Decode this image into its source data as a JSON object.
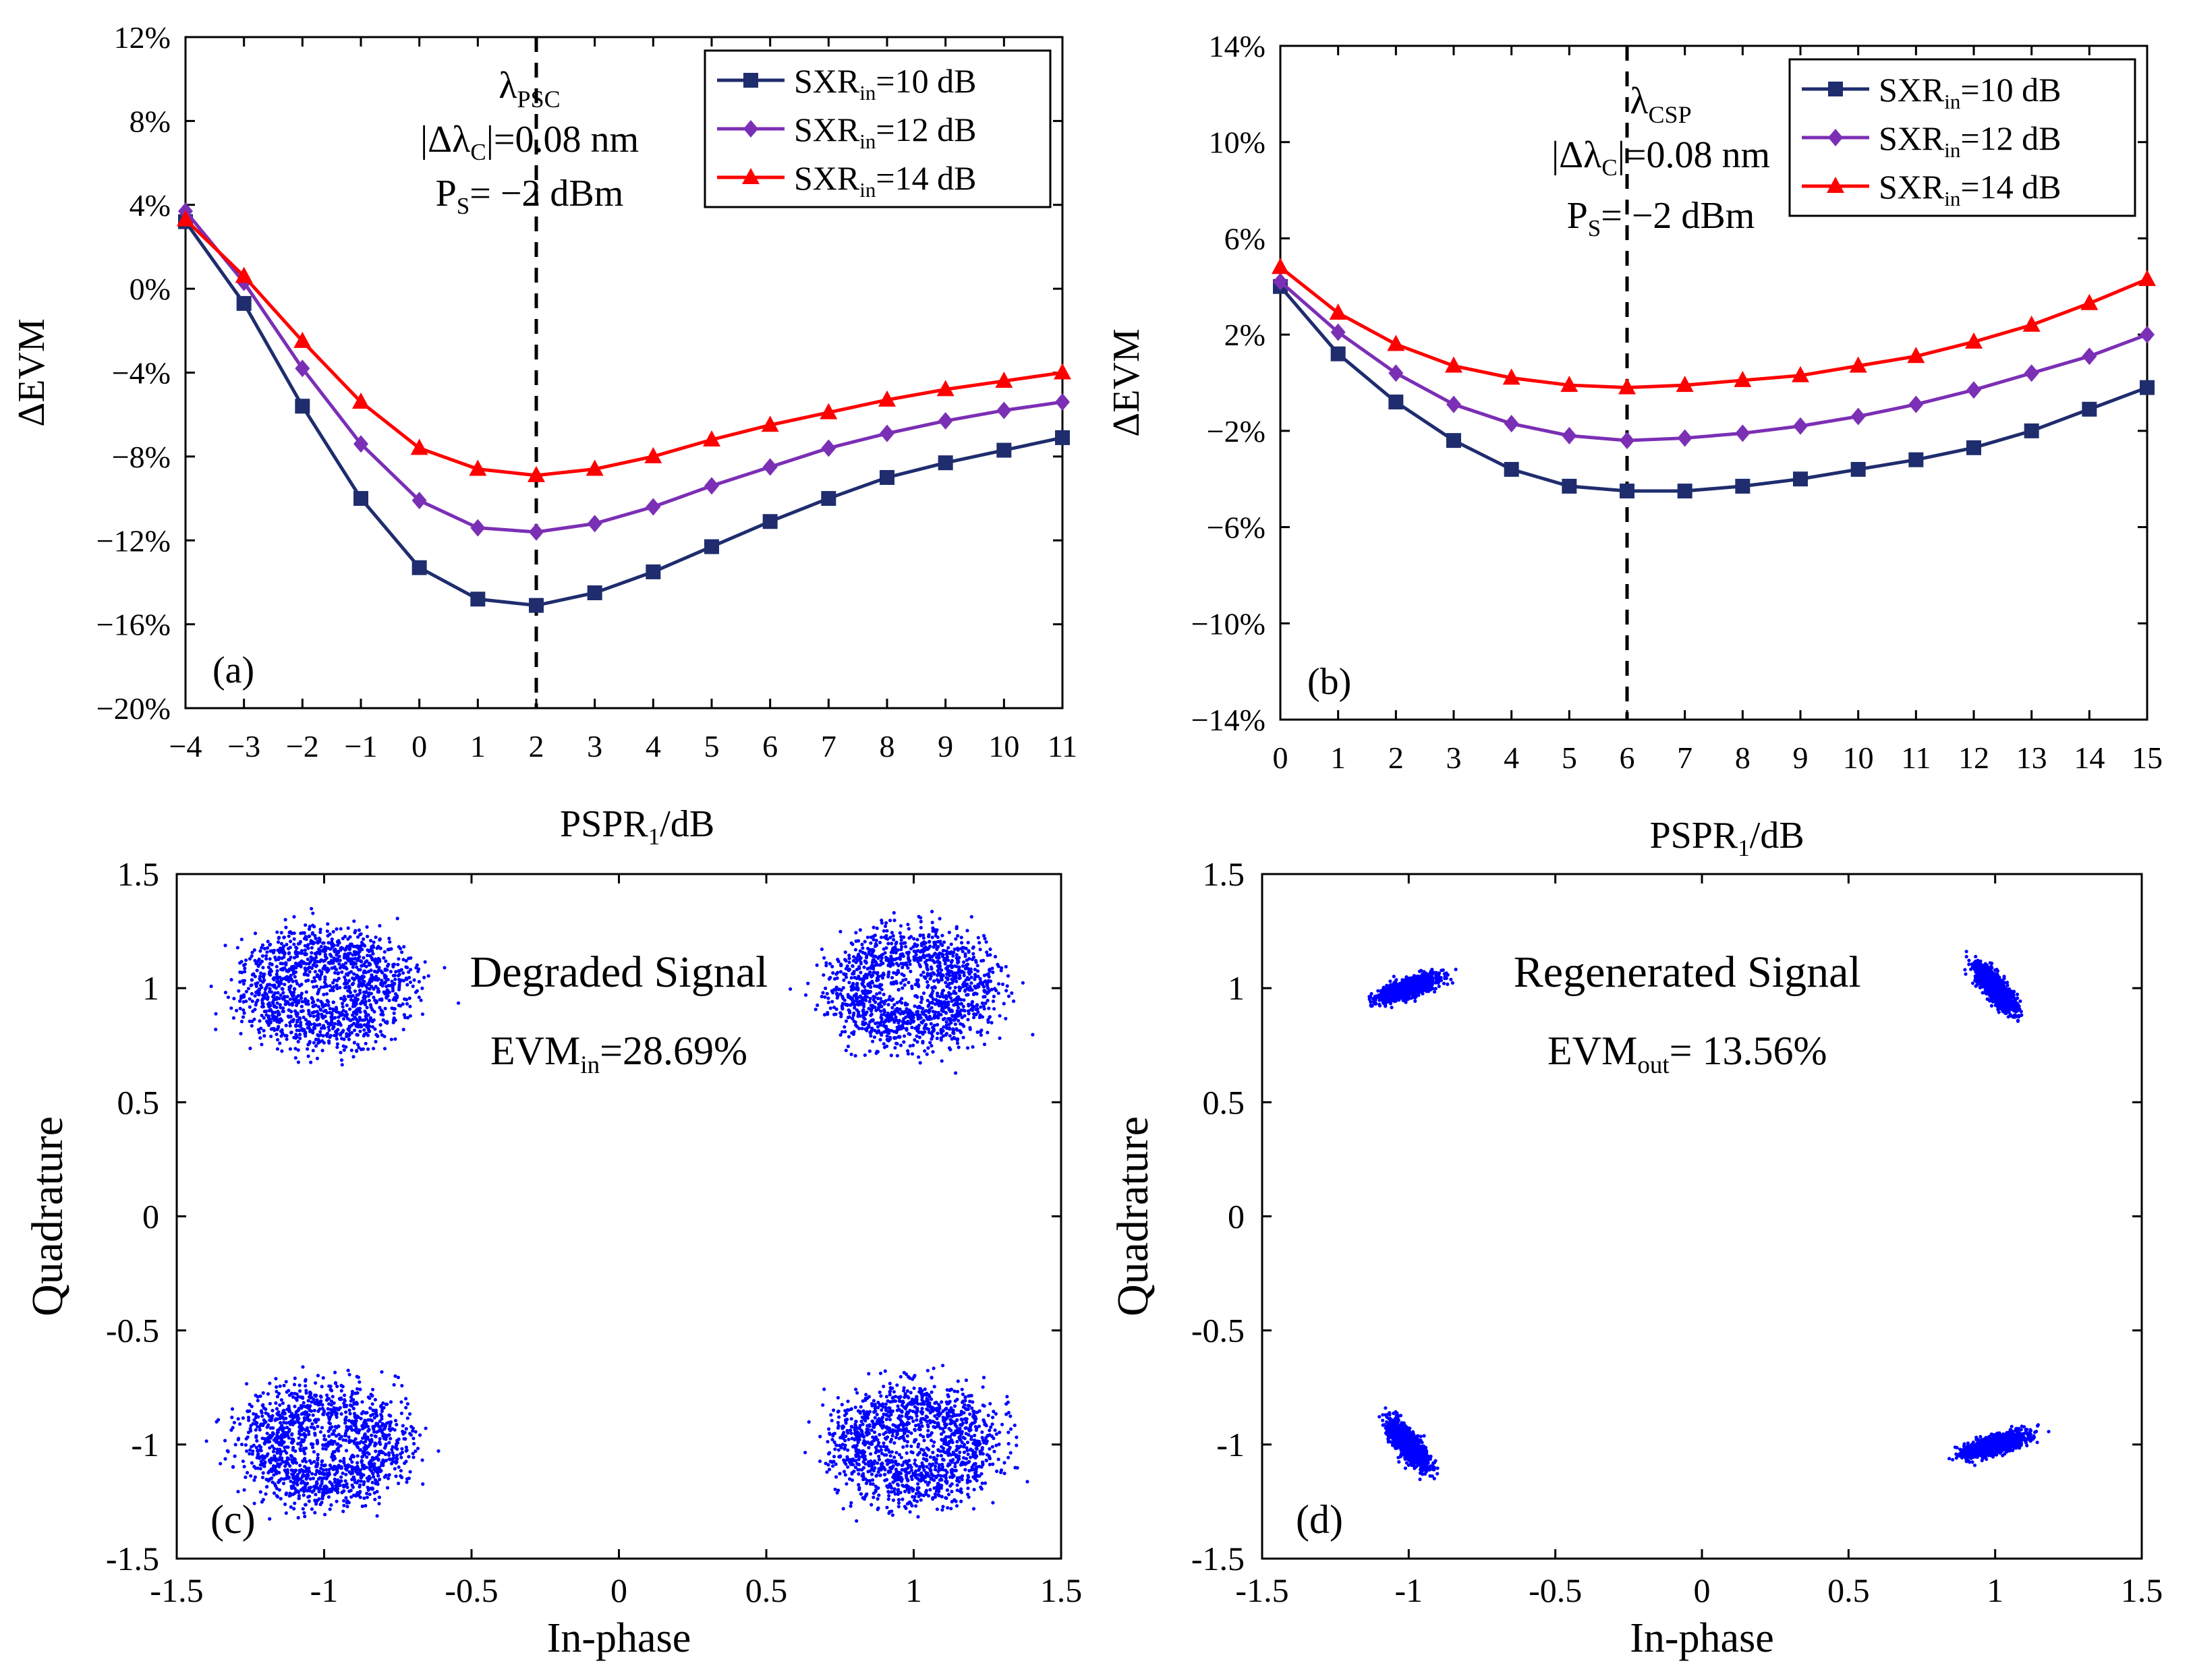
{
  "colors": {
    "series1": "#1f2d6e",
    "series2": "#7b2fb5",
    "series3": "#ff0000",
    "scatter": "#0000ff",
    "axis": "#000000"
  },
  "chart_data": [
    {
      "id": "a",
      "type": "line",
      "panel_label": "(a)",
      "xlabel": {
        "main": "PSPR",
        "sub": "1",
        "unit": "/dB"
      },
      "ylabel": "ΔEVM",
      "xlim": [
        -4,
        11
      ],
      "ylim": [
        -20,
        12
      ],
      "x": [
        -4,
        -3,
        -2,
        -1,
        0,
        1,
        2,
        3,
        4,
        5,
        6,
        7,
        8,
        9,
        10,
        11
      ],
      "xtick_labels": [
        "−4",
        "−3",
        "−2",
        "−1",
        "0",
        "1",
        "2",
        "3",
        "4",
        "5",
        "6",
        "7",
        "8",
        "9",
        "10",
        "11"
      ],
      "yticks": [
        12,
        8,
        4,
        0,
        -4,
        -8,
        -12,
        -16,
        -20
      ],
      "ytick_labels": [
        "12%",
        "8%",
        "4%",
        "0%",
        "−4%",
        "−8%",
        "−12%",
        "−16%",
        "−20%"
      ],
      "vline_x": 2,
      "annotation": {
        "lambda": "λ",
        "lambda_sub": "PSC",
        "delta_lhs": "|Δλ",
        "delta_sub": "C",
        "delta_rhs": "|=0.08 nm",
        "p": "P",
        "p_sub": "S",
        "p_rhs": "= −2 dBm"
      },
      "series": [
        {
          "name": "SXRin=10 dB",
          "legend": {
            "main": "SXR",
            "sub": "in",
            "rest": "=10 dB"
          },
          "marker": "square",
          "values": [
            3.2,
            -0.7,
            -5.6,
            -10.0,
            -13.3,
            -14.8,
            -15.1,
            -14.5,
            -13.5,
            -12.3,
            -11.1,
            -10.0,
            -9.0,
            -8.3,
            -7.7,
            -7.1
          ]
        },
        {
          "name": "SXRin=12 dB",
          "legend": {
            "main": "SXR",
            "sub": "in",
            "rest": "=12 dB"
          },
          "marker": "diamond",
          "values": [
            3.7,
            0.3,
            -3.8,
            -7.4,
            -10.1,
            -11.4,
            -11.6,
            -11.2,
            -10.4,
            -9.4,
            -8.5,
            -7.6,
            -6.9,
            -6.3,
            -5.8,
            -5.4
          ]
        },
        {
          "name": "SXRin=14 dB",
          "legend": {
            "main": "SXR",
            "sub": "in",
            "rest": "=14 dB"
          },
          "marker": "triangle",
          "values": [
            3.3,
            0.6,
            -2.5,
            -5.4,
            -7.6,
            -8.6,
            -8.9,
            -8.6,
            -8.0,
            -7.2,
            -6.5,
            -5.9,
            -5.3,
            -4.8,
            -4.4,
            -4.0
          ]
        }
      ]
    },
    {
      "id": "b",
      "type": "line",
      "panel_label": "(b)",
      "xlabel": {
        "main": "PSPR",
        "sub": "1",
        "unit": "/dB"
      },
      "ylabel": "ΔEVM",
      "xlim": [
        0,
        15
      ],
      "ylim": [
        -14,
        14
      ],
      "x": [
        0,
        1,
        2,
        3,
        4,
        5,
        6,
        7,
        8,
        9,
        10,
        11,
        12,
        13,
        14,
        15
      ],
      "xtick_labels": [
        "0",
        "1",
        "2",
        "3",
        "4",
        "5",
        "6",
        "7",
        "8",
        "9",
        "10",
        "11",
        "12",
        "13",
        "14",
        "15"
      ],
      "yticks": [
        14,
        10,
        6,
        2,
        -2,
        -6,
        -10,
        -14
      ],
      "ytick_labels": [
        "14%",
        "10%",
        "6%",
        "2%",
        "−2%",
        "−6%",
        "−10%",
        "−14%"
      ],
      "vline_x": 6,
      "annotation": {
        "lambda": "λ",
        "lambda_sub": "CSP",
        "delta_lhs": "|Δλ",
        "delta_sub": "C",
        "delta_rhs": "|=0.08 nm",
        "p": "P",
        "p_sub": "S",
        "p_rhs": "= −2 dBm"
      },
      "series": [
        {
          "name": "SXRin=10 dB",
          "legend": {
            "main": "SXR",
            "sub": "in",
            "rest": "=10 dB"
          },
          "marker": "square",
          "values": [
            4.0,
            1.2,
            -0.8,
            -2.4,
            -3.6,
            -4.3,
            -4.5,
            -4.5,
            -4.3,
            -4.0,
            -3.6,
            -3.2,
            -2.7,
            -2.0,
            -1.1,
            -0.2
          ]
        },
        {
          "name": "SXRin=12 dB",
          "legend": {
            "main": "SXR",
            "sub": "in",
            "rest": "=12 dB"
          },
          "marker": "diamond",
          "values": [
            4.2,
            2.1,
            0.4,
            -0.9,
            -1.7,
            -2.2,
            -2.4,
            -2.3,
            -2.1,
            -1.8,
            -1.4,
            -0.9,
            -0.3,
            0.4,
            1.1,
            2.0
          ]
        },
        {
          "name": "SXRin=14 dB",
          "legend": {
            "main": "SXR",
            "sub": "in",
            "rest": "=14 dB"
          },
          "marker": "triangle",
          "values": [
            4.8,
            2.9,
            1.6,
            0.7,
            0.2,
            -0.1,
            -0.2,
            -0.1,
            0.1,
            0.3,
            0.7,
            1.1,
            1.7,
            2.4,
            3.3,
            4.3
          ]
        }
      ]
    },
    {
      "id": "c",
      "type": "scatter",
      "panel_label": "(c)",
      "title": "Degraded Signal",
      "evm": {
        "main": "EVM",
        "sub": "in",
        "rest": "=28.69%"
      },
      "xlabel": "In-phase",
      "ylabel": "Quadrature",
      "xlim": [
        -1.5,
        1.5
      ],
      "ylim": [
        -1.5,
        1.5
      ],
      "xticks": [
        -1.5,
        -1,
        -0.5,
        0,
        0.5,
        1,
        1.5
      ],
      "xtick_labels": [
        "-1.5",
        "-1",
        "-0.5",
        "0",
        "0.5",
        "1",
        "1.5"
      ],
      "yticks": [
        1.5,
        1,
        0.5,
        0,
        -0.5,
        -1,
        -1.5
      ],
      "ytick_labels": [
        "1.5",
        "1",
        "0.5",
        "0",
        "-0.5",
        "-1",
        "-1.5"
      ],
      "constellation": {
        "shape": "ring",
        "points_per_cluster": 1400,
        "clusters": [
          {
            "cx": -1.0,
            "cy": 1.0,
            "radius": 0.2,
            "spread": 0.07
          },
          {
            "cx": 1.0,
            "cy": 1.0,
            "radius": 0.2,
            "spread": 0.07
          },
          {
            "cx": -1.0,
            "cy": -1.0,
            "radius": 0.2,
            "spread": 0.07
          },
          {
            "cx": 1.0,
            "cy": -1.0,
            "radius": 0.2,
            "spread": 0.07
          }
        ]
      }
    },
    {
      "id": "d",
      "type": "scatter",
      "panel_label": "(d)",
      "title": "Regenerated Signal",
      "evm": {
        "main": "EVM",
        "sub": "out",
        "rest": "= 13.56%"
      },
      "xlabel": "In-phase",
      "ylabel": "Quadrature",
      "xlim": [
        -1.5,
        1.5
      ],
      "ylim": [
        -1.5,
        1.5
      ],
      "xticks": [
        -1.5,
        -1,
        -0.5,
        0,
        0.5,
        1,
        1.5
      ],
      "xtick_labels": [
        "-1.5",
        "-1",
        "-0.5",
        "0",
        "0.5",
        "1",
        "1.5"
      ],
      "yticks": [
        1.5,
        1,
        0.5,
        0,
        -0.5,
        -1,
        -1.5
      ],
      "ytick_labels": [
        "1.5",
        "1",
        "0.5",
        "0",
        "-0.5",
        "-1",
        "-1.5"
      ],
      "constellation": {
        "shape": "ellipse",
        "points_per_cluster": 1400,
        "clusters": [
          {
            "cx": -1.0,
            "cy": 1.0,
            "major": 0.11,
            "minor": 0.03,
            "angle_deg": 25
          },
          {
            "cx": 1.0,
            "cy": 1.0,
            "major": 0.11,
            "minor": 0.03,
            "angle_deg": -60
          },
          {
            "cx": -1.0,
            "cy": -1.0,
            "major": 0.11,
            "minor": 0.03,
            "angle_deg": -60
          },
          {
            "cx": 1.0,
            "cy": -1.0,
            "major": 0.11,
            "minor": 0.03,
            "angle_deg": 22
          }
        ]
      }
    }
  ]
}
